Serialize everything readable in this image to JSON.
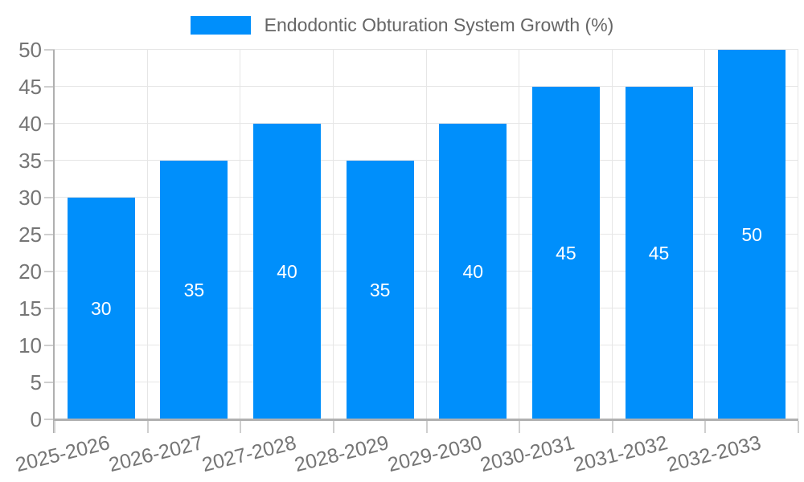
{
  "legend": {
    "label": "Endodontic Obturation System Growth (%)"
  },
  "colors": {
    "bar": "#008FFB",
    "grid": "#e6e6e6",
    "axis_line": "#b0b0b0",
    "tick": "#cfcfcf",
    "axis_text": "#757575",
    "legend_text": "#666666",
    "bar_label_text": "#ffffff",
    "background": "#ffffff"
  },
  "chart_data": {
    "type": "bar",
    "title": "Endodontic Obturation System Growth (%)",
    "categories": [
      "2025-2026",
      "2026-2027",
      "2027-2028",
      "2028-2029",
      "2029-2030",
      "2030-2031",
      "2031-2032",
      "2032-2033"
    ],
    "series": [
      {
        "name": "Endodontic Obturation System Growth (%)",
        "values": [
          30,
          35,
          40,
          35,
          40,
          45,
          45,
          50
        ]
      }
    ],
    "data_labels": [
      "30",
      "35",
      "40",
      "35",
      "40",
      "45",
      "45",
      "50"
    ],
    "data_label_position": "inside-center",
    "xlabel": "",
    "ylabel": "",
    "ylim": [
      0,
      50
    ],
    "yticks": [
      0,
      5,
      10,
      15,
      20,
      25,
      30,
      35,
      40,
      45,
      50
    ],
    "grid": true,
    "legend_position": "top-center",
    "x_label_rotation_deg": -14
  }
}
